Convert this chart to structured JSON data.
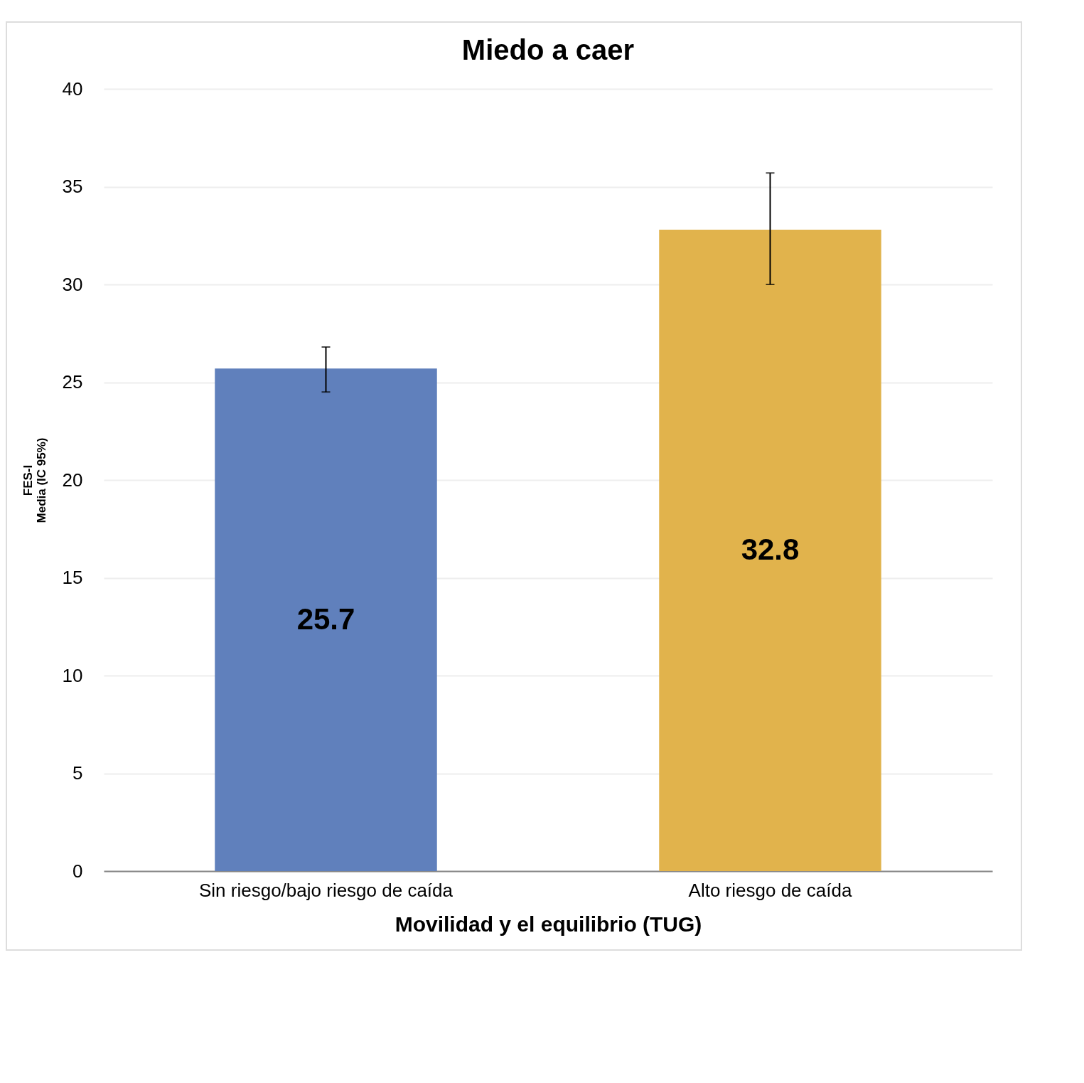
{
  "chart_data": {
    "type": "bar",
    "title": "Miedo a caer",
    "xlabel": "Movilidad y el equilibrio (TUG)",
    "ylabel": "FES-I\nMedia (IC 95%)",
    "categories": [
      "Sin riesgo/bajo riesgo de caída",
      "Alto riesgo de caída"
    ],
    "values": [
      25.7,
      32.8
    ],
    "colors": [
      "#6080bc",
      "#e1b34c"
    ],
    "errors": [
      [
        24.5,
        26.8
      ],
      [
        30.0,
        35.7
      ]
    ],
    "ylim": [
      0,
      40
    ],
    "yticks": [
      0,
      5,
      10,
      15,
      20,
      25,
      30,
      35,
      40
    ],
    "grid": "y",
    "data_labels": true
  }
}
